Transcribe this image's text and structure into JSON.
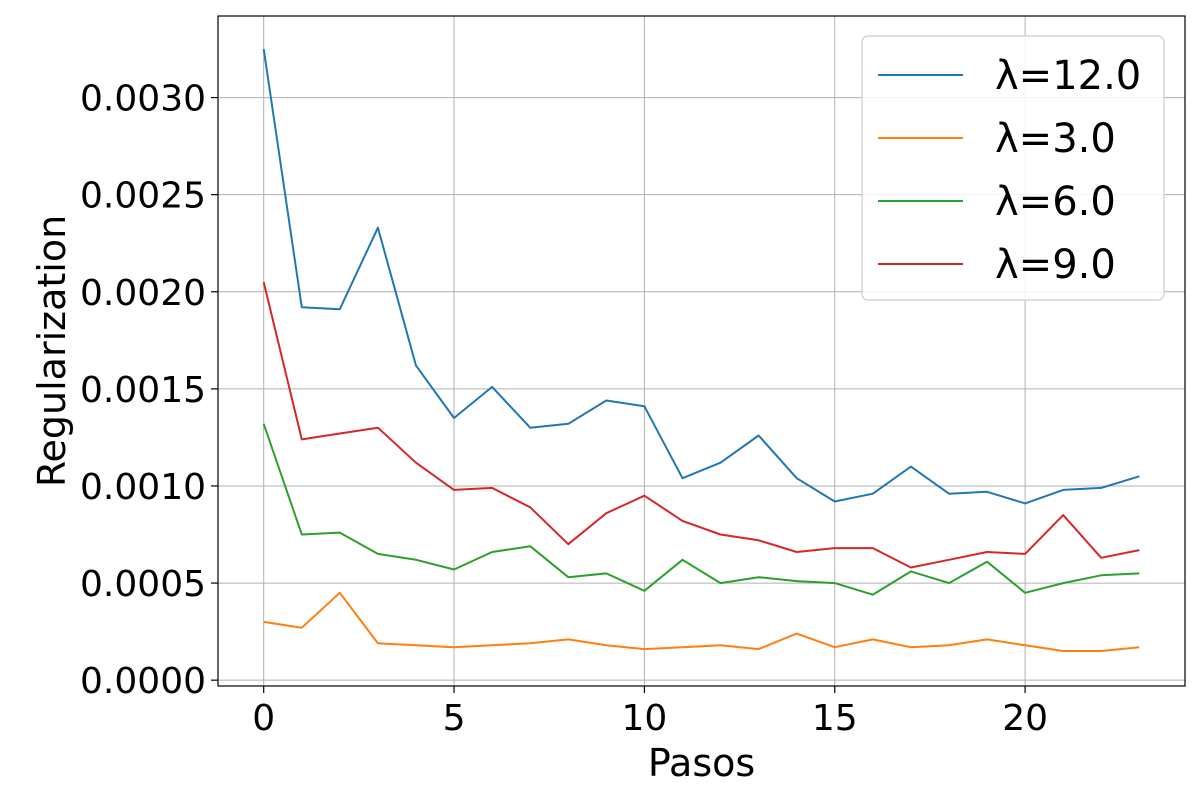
{
  "chart_data": {
    "type": "line",
    "xlabel": "Pasos",
    "ylabel": "Regularization",
    "xlim": [
      -1.2,
      24.2
    ],
    "ylim": [
      -3e-05,
      0.00342
    ],
    "x_ticks": [
      0,
      5,
      10,
      15,
      20
    ],
    "y_ticks": [
      0.0,
      0.0005,
      0.001,
      0.0015,
      0.002,
      0.0025,
      0.003
    ],
    "y_tick_labels": [
      "0.0000",
      "0.0005",
      "0.0010",
      "0.0015",
      "0.0020",
      "0.0025",
      "0.0030"
    ],
    "grid": true,
    "legend_position": "top-right",
    "x": [
      0,
      1,
      2,
      3,
      4,
      5,
      6,
      7,
      8,
      9,
      10,
      11,
      12,
      13,
      14,
      15,
      16,
      17,
      18,
      19,
      20,
      21,
      22,
      23
    ],
    "series": [
      {
        "name": "λ=12.0",
        "color": "#1f77b4",
        "values": [
          0.00325,
          0.00192,
          0.00191,
          0.00233,
          0.00162,
          0.00135,
          0.00151,
          0.0013,
          0.00132,
          0.00144,
          0.00141,
          0.00104,
          0.00112,
          0.00126,
          0.00104,
          0.00092,
          0.00096,
          0.0011,
          0.00096,
          0.00097,
          0.00091,
          0.00098,
          0.00099,
          0.00105
        ]
      },
      {
        "name": "λ=3.0",
        "color": "#ff7f0e",
        "values": [
          0.0003,
          0.00027,
          0.00045,
          0.00019,
          0.00018,
          0.00017,
          0.00018,
          0.00019,
          0.00021,
          0.00018,
          0.00016,
          0.00017,
          0.00018,
          0.00016,
          0.00024,
          0.00017,
          0.00021,
          0.00017,
          0.00018,
          0.00021,
          0.00018,
          0.00015,
          0.00015,
          0.00017
        ]
      },
      {
        "name": "λ=6.0",
        "color": "#2ca02c",
        "values": [
          0.00132,
          0.00075,
          0.00076,
          0.00065,
          0.00062,
          0.00057,
          0.00066,
          0.00069,
          0.00053,
          0.00055,
          0.00046,
          0.00062,
          0.0005,
          0.00053,
          0.00051,
          0.0005,
          0.00044,
          0.00056,
          0.0005,
          0.00061,
          0.00045,
          0.0005,
          0.00054,
          0.00055
        ]
      },
      {
        "name": "λ=9.0",
        "color": "#d62728",
        "values": [
          0.00205,
          0.00124,
          0.00127,
          0.0013,
          0.00112,
          0.00098,
          0.00099,
          0.00089,
          0.0007,
          0.00086,
          0.00095,
          0.00082,
          0.00075,
          0.00072,
          0.00066,
          0.00068,
          0.00068,
          0.00058,
          0.00062,
          0.00066,
          0.00065,
          0.00085,
          0.00063,
          0.00067
        ]
      }
    ]
  }
}
